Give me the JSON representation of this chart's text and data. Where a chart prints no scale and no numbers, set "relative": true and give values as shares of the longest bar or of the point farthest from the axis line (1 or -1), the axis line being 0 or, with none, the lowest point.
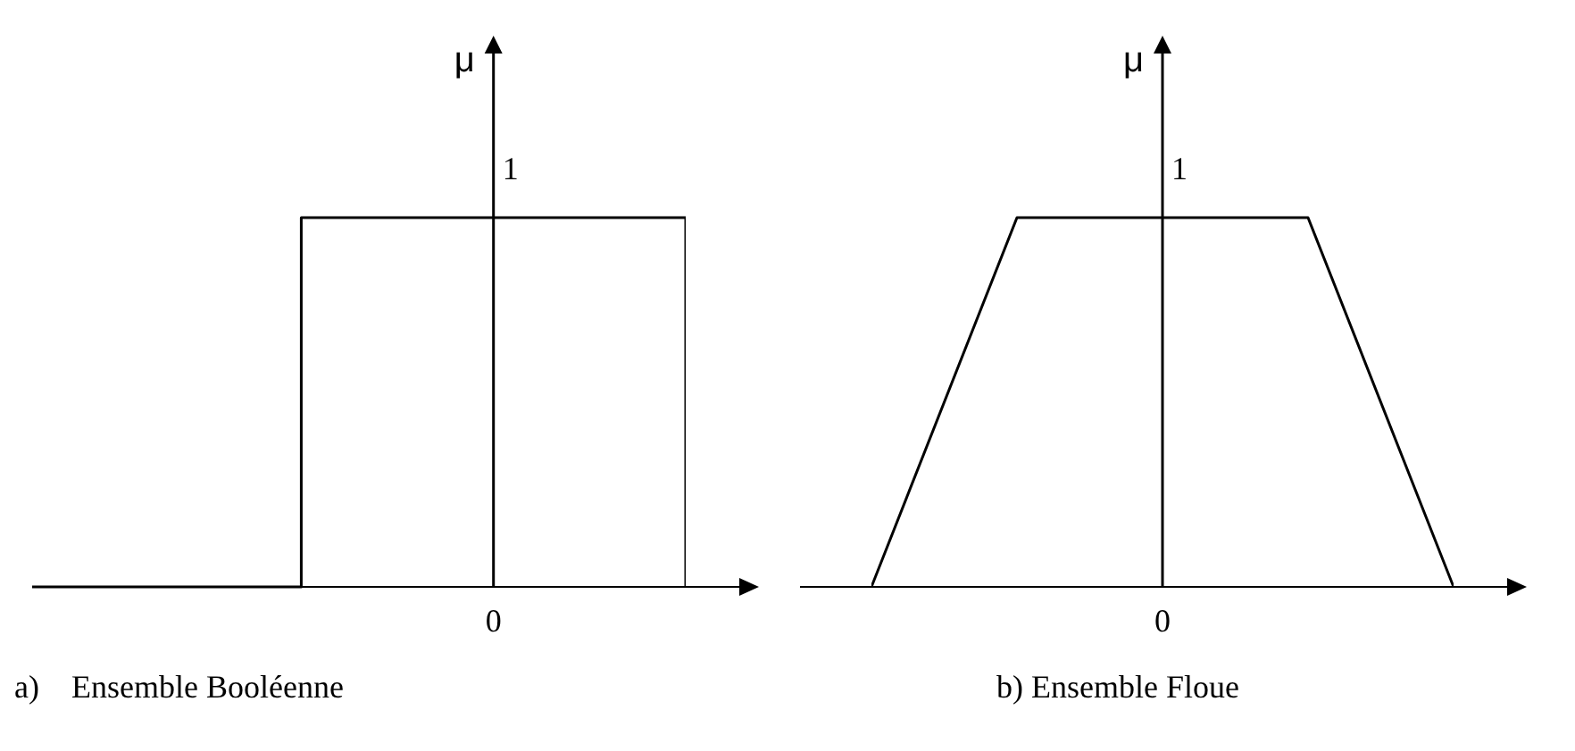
{
  "chart_data": [
    {
      "type": "step",
      "relative": true,
      "ylabel": "μ",
      "categories": [
        null,
        null,
        null
      ],
      "series": [
        {
          "color": "#000000",
          "values": [
            0,
            1,
            0
          ]
        }
      ],
      "annotations": [
        "1",
        "0",
        "a)    Ensemble Booléenne"
      ],
      "grid": false,
      "legend": false,
      "marker": "none",
      "line_style": "solid"
    },
    {
      "type": "line",
      "relative": true,
      "ylabel": "μ",
      "categories": [
        null,
        null,
        null,
        null,
        null
      ],
      "series": [
        {
          "color": "#000000",
          "values": [
            0,
            1,
            1,
            1,
            0
          ]
        }
      ],
      "annotations": [
        "1",
        "0",
        "b) Ensemble Floue"
      ],
      "grid": false,
      "legend": false,
      "marker": "none",
      "line_style": "solid"
    }
  ]
}
